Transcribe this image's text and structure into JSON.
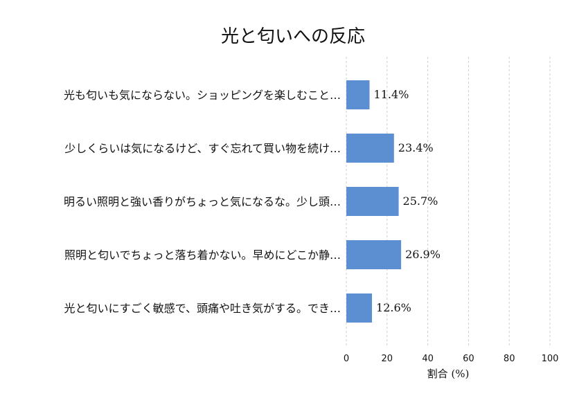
{
  "chart_data": {
    "type": "bar",
    "orientation": "horizontal",
    "title": "光と匂いへの反応",
    "xlabel": "割合 (%)",
    "ylabel": "",
    "xlim": [
      0,
      100
    ],
    "xticks": [
      0,
      20,
      40,
      60,
      80,
      100
    ],
    "grid": true,
    "bar_color": "#5b8fd1",
    "categories": [
      "光も匂いも気にならない。ショッピングを楽しむこと…",
      "少しくらいは気になるけど、すぐ忘れて買い物を続け…",
      "明るい照明と強い香りがちょっと気になるな。少し頭…",
      "照明と匂いでちょっと落ち着かない。早めにどこか静…",
      "光と匂いにすごく敏感で、頭痛や吐き気がする。でき…"
    ],
    "values": [
      11.4,
      23.4,
      25.7,
      26.9,
      12.6
    ],
    "value_labels": [
      "11.4%",
      "23.4%",
      "25.7%",
      "26.9%",
      "12.6%"
    ]
  }
}
